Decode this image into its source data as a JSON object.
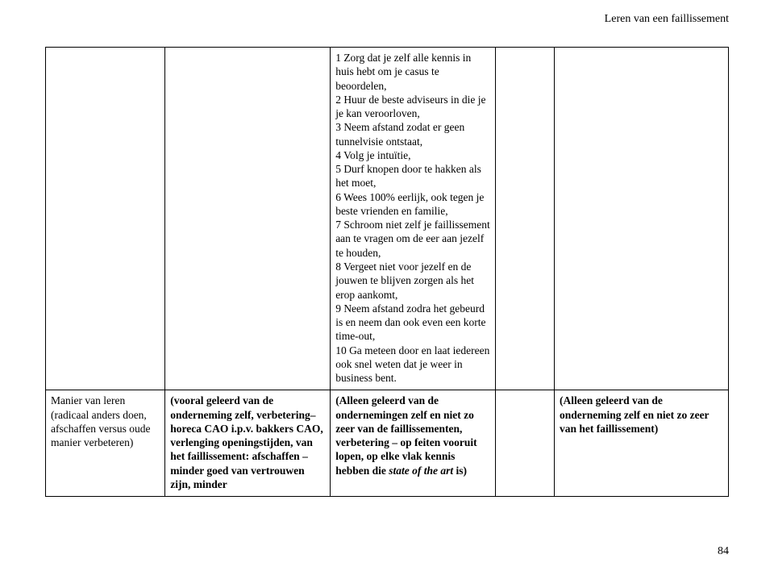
{
  "header": {
    "right_text": "Leren van een faillissement"
  },
  "page_number": "84",
  "table": {
    "row1": {
      "cell1": "",
      "cell2": "",
      "cell3_items": {
        "i1": "1 Zorg dat je zelf alle kennis in huis hebt om je casus te beoordelen,",
        "i2": "2 Huur de beste adviseurs in die je je kan veroorloven,",
        "i3": "3 Neem afstand zodat er geen tunnelvisie ontstaat,",
        "i4": "4 Volg je intuïtie,",
        "i5": "5 Durf knopen door te hakken als het moet,",
        "i6": "6 Wees 100% eerlijk, ook tegen je beste vrienden en familie,",
        "i7": "7 Schroom niet zelf je faillissement aan te vragen om de eer aan jezelf te houden,",
        "i8": "8 Vergeet niet voor jezelf en de jouwen te blijven zorgen als het erop aankomt,",
        "i9": "9 Neem afstand zodra het gebeurd is en neem dan ook even een korte time-out,",
        "i10": "10 Ga meteen door en laat iedereen ook snel weten dat je weer in business bent."
      },
      "cell4": "",
      "cell5": ""
    },
    "row2": {
      "cell1": "Manier van leren (radicaal anders doen, afschaffen versus oude manier verbeteren)",
      "cell2": "(vooral geleerd van de onderneming zelf, verbetering– horeca CAO i.p.v. bakkers CAO, verlenging openingstijden, van het faillissement: afschaffen – minder goed van vertrouwen zijn, minder",
      "cell3_pre": "(Alleen geleerd van de ondernemingen zelf en niet zo zeer van de faillissementen, verbetering – op feiten vooruit lopen, op elke vlak kennis hebben die ",
      "cell3_italic": "state of the art",
      "cell3_post": " is)",
      "cell4": "",
      "cell5": "(Alleen geleerd van de onderneming zelf en niet zo zeer van het faillissement)"
    }
  }
}
